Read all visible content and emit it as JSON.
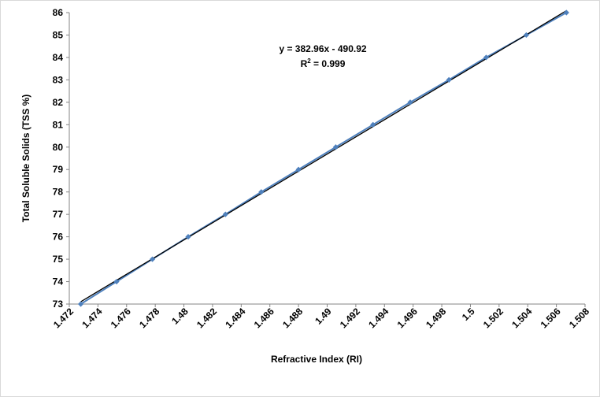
{
  "chart_data": {
    "type": "scatter",
    "xlabel": "Refractive Index (RI)",
    "ylabel": "Total Soluble Solids (TSS %)",
    "xlim": [
      1.472,
      1.508
    ],
    "ylim": [
      73,
      86
    ],
    "xticks": [
      "1.472",
      "1.474",
      "1.476",
      "1.478",
      "1.48",
      "1.482",
      "1.484",
      "1.486",
      "1.488",
      "1.49",
      "1.492",
      "1.494",
      "1.496",
      "1.498",
      "1.5",
      "1.502",
      "1.504",
      "1.506",
      "1.508"
    ],
    "yticks": [
      "73",
      "74",
      "75",
      "76",
      "77",
      "78",
      "79",
      "80",
      "81",
      "82",
      "83",
      "84",
      "85",
      "86"
    ],
    "series": [
      {
        "x": [
          1.4728,
          1.4753,
          1.4778,
          1.4803,
          1.4829,
          1.4854,
          1.488,
          1.4906,
          1.4932,
          1.4958,
          1.4985,
          1.5011,
          1.5039,
          1.5067
        ],
        "y": [
          73,
          74,
          75,
          76,
          77,
          78,
          79,
          80,
          81,
          82,
          83,
          84,
          85,
          86
        ]
      }
    ],
    "trendline": {
      "slope": 382.96,
      "intercept": -490.92
    },
    "annotation": {
      "equation": "y = 382.96x - 490.92",
      "r2_prefix": "R",
      "r2_sup": "2",
      "r2_value": " = 0.999"
    },
    "grid": false,
    "legend": "none",
    "colors": {
      "series": "#4f81bd",
      "marker": "#4f81bd",
      "trendline": "#000000"
    }
  }
}
